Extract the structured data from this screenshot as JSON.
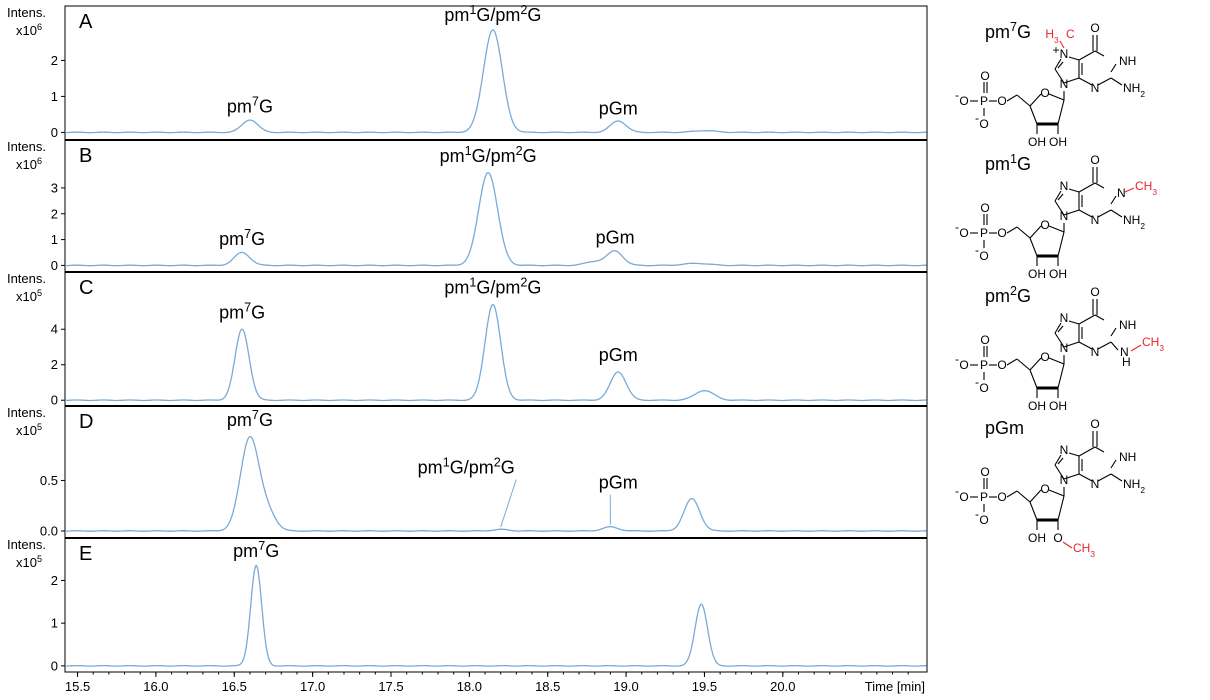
{
  "colors": {
    "trace": "#7aaad6",
    "methyl": "#e8262a",
    "axis": "#000000"
  },
  "chart_data": {
    "type": "line",
    "xlabel": "Time [min]",
    "xlim": [
      15.42,
      20.92
    ],
    "x_ticks": [
      15.5,
      16.0,
      16.5,
      17.0,
      17.5,
      18.0,
      18.5,
      19.0,
      19.5,
      20.0
    ],
    "x_tick_labels": [
      "15.5",
      "16.0",
      "16.5",
      "17.0",
      "17.5",
      "18.0",
      "18.5",
      "19.0",
      "19.5",
      "20.0"
    ],
    "panels": [
      {
        "id": "A",
        "y_label_line1": "Intens.",
        "y_label_line2": "x10",
        "y_exp": "6",
        "ylim": [
          -0.1,
          3.4
        ],
        "y_ticks": [
          "0",
          "1",
          "2"
        ],
        "y_tick_values": [
          0,
          1,
          2
        ],
        "peaks": [
          {
            "center": 16.6,
            "height": 0.35,
            "width": 0.05
          },
          {
            "center": 18.15,
            "height": 2.85,
            "width": 0.06
          },
          {
            "center": 18.95,
            "height": 0.32,
            "width": 0.05
          },
          {
            "center": 19.5,
            "height": 0.05,
            "width": 0.07
          }
        ],
        "annotations": [
          {
            "base": "pm",
            "sup": "7",
            "rest": "G",
            "x": 16.6,
            "y": 0.55
          },
          {
            "base": "pm",
            "sup": "1",
            "rest": "G/pm",
            "sup2": "2",
            "rest2": "G",
            "x": 18.15,
            "y": 3.1
          },
          {
            "base": "pGm",
            "sup": "",
            "rest": "",
            "x": 18.95,
            "y": 0.5
          }
        ]
      },
      {
        "id": "B",
        "y_label_line1": "Intens.",
        "y_label_line2": "x10",
        "y_exp": "6",
        "ylim": [
          -0.1,
          4.7
        ],
        "y_ticks": [
          "0",
          "1",
          "2",
          "3"
        ],
        "y_tick_values": [
          0,
          1,
          2,
          3
        ],
        "peaks": [
          {
            "center": 16.55,
            "height": 0.5,
            "width": 0.05
          },
          {
            "center": 18.12,
            "height": 3.6,
            "width": 0.06
          },
          {
            "center": 18.93,
            "height": 0.55,
            "width": 0.05
          },
          {
            "center": 18.8,
            "height": 0.15,
            "width": 0.06
          },
          {
            "center": 19.45,
            "height": 0.08,
            "width": 0.08
          }
        ],
        "annotations": [
          {
            "base": "pm",
            "sup": "7",
            "rest": "G",
            "x": 16.55,
            "y": 0.8
          },
          {
            "base": "pm",
            "sup": "1",
            "rest": "G/pm",
            "sup2": "2",
            "rest2": "G",
            "x": 18.12,
            "y": 4.0
          },
          {
            "base": "pGm",
            "sup": "",
            "rest": "",
            "x": 18.93,
            "y": 0.85
          }
        ]
      },
      {
        "id": "C",
        "y_label_line1": "Intens.",
        "y_label_line2": "x10",
        "y_exp": "5",
        "ylim": [
          -0.1,
          7.0
        ],
        "y_ticks": [
          "0",
          "2",
          "4"
        ],
        "y_tick_values": [
          0,
          2,
          4
        ],
        "peaks": [
          {
            "center": 16.55,
            "height": 4.0,
            "width": 0.045
          },
          {
            "center": 18.15,
            "height": 5.4,
            "width": 0.05
          },
          {
            "center": 18.95,
            "height": 1.6,
            "width": 0.05
          },
          {
            "center": 19.5,
            "height": 0.55,
            "width": 0.06
          }
        ],
        "annotations": [
          {
            "base": "pm",
            "sup": "7",
            "rest": "G",
            "x": 16.55,
            "y": 4.6
          },
          {
            "base": "pm",
            "sup": "1",
            "rest": "G/pm",
            "sup2": "2",
            "rest2": "G",
            "x": 18.15,
            "y": 6.0
          },
          {
            "base": "pGm",
            "sup": "",
            "rest": "",
            "x": 18.95,
            "y": 2.2
          }
        ]
      },
      {
        "id": "D",
        "y_label_line1": "Intens.",
        "y_label_line2": "x10",
        "y_exp": "5",
        "ylim": [
          -0.03,
          1.2
        ],
        "y_ticks": [
          "0.0",
          "0.5"
        ],
        "y_tick_values": [
          0,
          0.5
        ],
        "peaks": [
          {
            "center": 16.6,
            "height": 0.93,
            "width": 0.06
          },
          {
            "center": 16.72,
            "height": 0.15,
            "width": 0.05
          },
          {
            "center": 18.2,
            "height": 0.015,
            "width": 0.05
          },
          {
            "center": 18.9,
            "height": 0.04,
            "width": 0.05
          },
          {
            "center": 19.42,
            "height": 0.32,
            "width": 0.05
          }
        ],
        "annotations": [
          {
            "base": "pm",
            "sup": "7",
            "rest": "G",
            "x": 16.6,
            "y": 1.04
          },
          {
            "base": "pm",
            "sup": "1",
            "rest": "G/pm",
            "sup2": "2",
            "rest2": "G",
            "x": 17.98,
            "y": 0.57,
            "leader_to": [
              18.2,
              0.04
            ]
          },
          {
            "base": "pGm",
            "sup": "",
            "rest": "",
            "x": 18.95,
            "y": 0.42,
            "leader_to": [
              18.9,
              0.06
            ]
          }
        ]
      },
      {
        "id": "E",
        "y_label_line1": "Intens.",
        "y_label_line2": "x10",
        "y_exp": "5",
        "ylim": [
          -0.05,
          2.9
        ],
        "y_ticks": [
          "0",
          "1",
          "2"
        ],
        "y_tick_values": [
          0,
          1,
          2
        ],
        "peaks": [
          {
            "center": 16.64,
            "height": 2.35,
            "width": 0.035
          },
          {
            "center": 19.48,
            "height": 1.45,
            "width": 0.04
          }
        ],
        "annotations": [
          {
            "base": "pm",
            "sup": "7",
            "rest": "G",
            "x": 16.64,
            "y": 2.55
          }
        ]
      }
    ]
  },
  "structures": [
    {
      "id": "pm7G",
      "name_base": "pm",
      "name_sup": "7",
      "name_rest": "G",
      "methyl_label": "H3C",
      "methyl_position": "N7"
    },
    {
      "id": "pm1G",
      "name_base": "pm",
      "name_sup": "1",
      "name_rest": "G",
      "methyl_label": "CH3",
      "methyl_position": "N1"
    },
    {
      "id": "pm2G",
      "name_base": "pm",
      "name_sup": "2",
      "name_rest": "G",
      "methyl_label": "CH3",
      "methyl_position": "N2"
    },
    {
      "id": "pGm",
      "name_base": "pGm",
      "name_sup": "",
      "name_rest": "",
      "methyl_label": "CH3",
      "methyl_position": "O2'"
    }
  ],
  "atom_labels": {
    "O": "O",
    "N": "N",
    "NH": "NH",
    "NH2": "NH",
    "two": "2",
    "P": "P",
    "OH": "OH",
    "H": "H",
    "three": "3",
    "C": "C",
    "plus": "+",
    "minus": "-"
  }
}
